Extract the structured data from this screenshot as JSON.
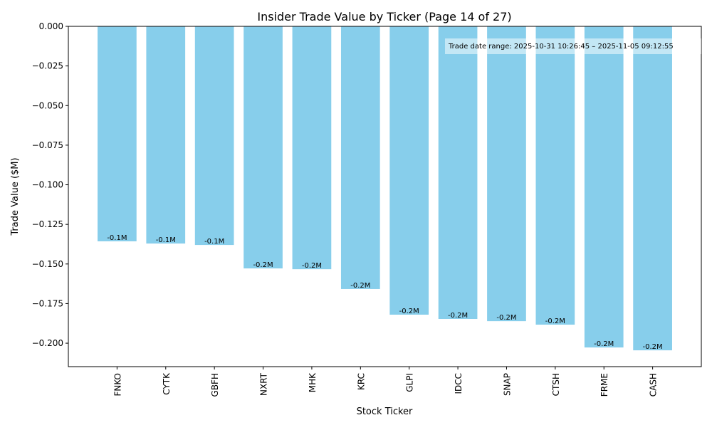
{
  "chart_data": {
    "type": "bar",
    "title": "Insider Trade Value by Ticker (Page 14 of 27)",
    "xlabel": "Stock Ticker",
    "ylabel": "Trade Value ($M)",
    "categories": [
      "FNKO",
      "CYTK",
      "GBFH",
      "NXRT",
      "MHK",
      "KRC",
      "GLPI",
      "IDCC",
      "SNAP",
      "CTSH",
      "FRME",
      "CASH"
    ],
    "values": [
      -0.1357,
      -0.1371,
      -0.138,
      -0.1528,
      -0.1533,
      -0.1658,
      -0.182,
      -0.1847,
      -0.1861,
      -0.1883,
      -0.2027,
      -0.2045
    ],
    "data_labels": [
      "-0.1M",
      "-0.1M",
      "-0.1M",
      "-0.2M",
      "-0.2M",
      "-0.2M",
      "-0.2M",
      "-0.2M",
      "-0.2M",
      "-0.2M",
      "-0.2M",
      "-0.2M"
    ],
    "ylim": [
      -0.2148,
      0
    ],
    "yticks": [
      0,
      -0.025,
      -0.05,
      -0.075,
      -0.1,
      -0.125,
      -0.15,
      -0.175,
      -0.2
    ],
    "ytick_labels": [
      "0.000",
      "−0.025",
      "−0.050",
      "−0.075",
      "−0.100",
      "−0.125",
      "−0.150",
      "−0.175",
      "−0.200"
    ],
    "grid": false,
    "bar_color": "#87CEEB",
    "annotation": "Trade date range: 2025-10-31 10:26:45 – 2025-11-05 09:12:55"
  }
}
